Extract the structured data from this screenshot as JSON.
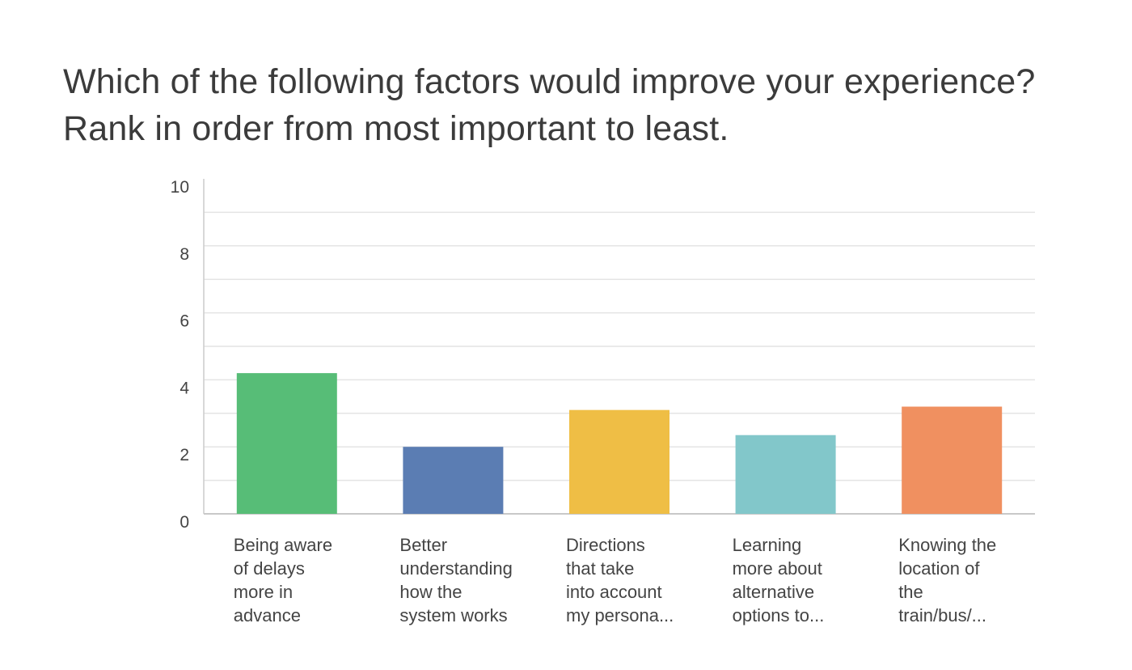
{
  "title": "Which of the following factors would improve your experience? Rank in order from most important to least.",
  "chart_data": {
    "type": "bar",
    "title": "Which of the following factors would improve your experience? Rank in order from most important to least.",
    "xlabel": "",
    "ylabel": "",
    "ylim": [
      0,
      10
    ],
    "yticks": [
      0,
      2,
      4,
      6,
      8,
      10
    ],
    "grid": true,
    "legend": "none",
    "categories": [
      "Being aware of delays more in advance",
      "Better understanding how the system works",
      "Directions that take into account my persona...",
      "Learning more about alternative options to...",
      "Knowing the location of the train/bus/..."
    ],
    "category_lines": [
      [
        "Being aware",
        "of delays",
        "more in",
        "advance"
      ],
      [
        "Better",
        "understanding",
        "how the",
        "system works"
      ],
      [
        "Directions",
        "that take",
        "into account",
        "my persona..."
      ],
      [
        "Learning",
        "more about",
        "alternative",
        "options to..."
      ],
      [
        "Knowing the",
        "location of",
        "the",
        "train/bus/..."
      ]
    ],
    "values": [
      4.2,
      2.0,
      3.1,
      2.35,
      3.2
    ],
    "colors": [
      "#57bd77",
      "#5b7db3",
      "#efbe45",
      "#82c7ca",
      "#f09060"
    ]
  }
}
